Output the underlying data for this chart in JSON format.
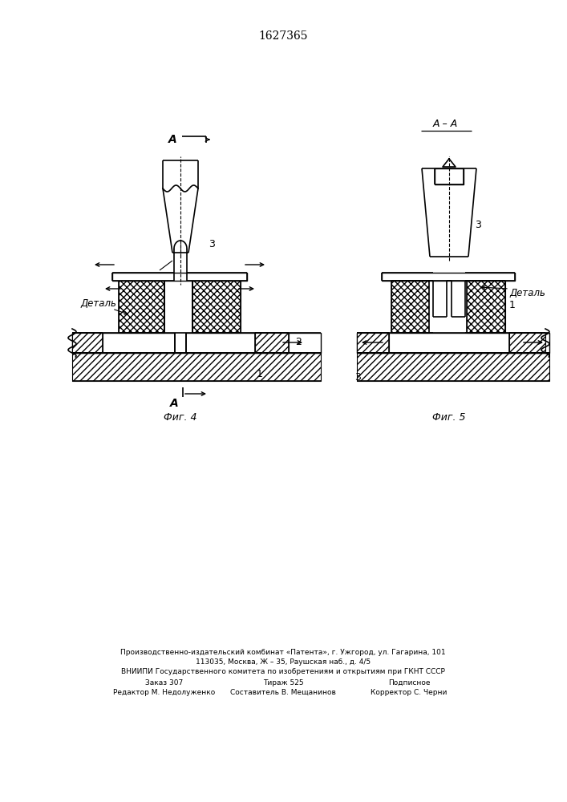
{
  "title": "1627365",
  "fig4_label": "Фиг. 4",
  "fig5_label": "Фиг. 5",
  "detail_label": "Деталь",
  "A_label": "А",
  "AA_label": "А – А",
  "background_color": "#ffffff",
  "line_color": "#000000",
  "bottom_lines": [
    [
      170,
      863,
      "Редактор М. Недолуженко"
    ],
    [
      170,
      851,
      "Заказ 307"
    ],
    [
      353,
      863,
      "Составитель В. Мещанинов"
    ],
    [
      353,
      863,
      ""
    ],
    [
      353,
      851,
      "Тираж 525"
    ],
    [
      530,
      863,
      "Корректор С. Черни"
    ],
    [
      530,
      851,
      "Подписное"
    ],
    [
      353,
      838,
      "ВНИИПИ Государственного комитета по изобретениям и открытиям при ГКНТ СССР"
    ],
    [
      353,
      826,
      "113035, Москва, Ж – 35, Раушская наб., д. 4/5"
    ],
    [
      353,
      814,
      "Производственно-издательский комбинат «Патента», г. Ужгород, ул. Гагарина, 101"
    ]
  ]
}
